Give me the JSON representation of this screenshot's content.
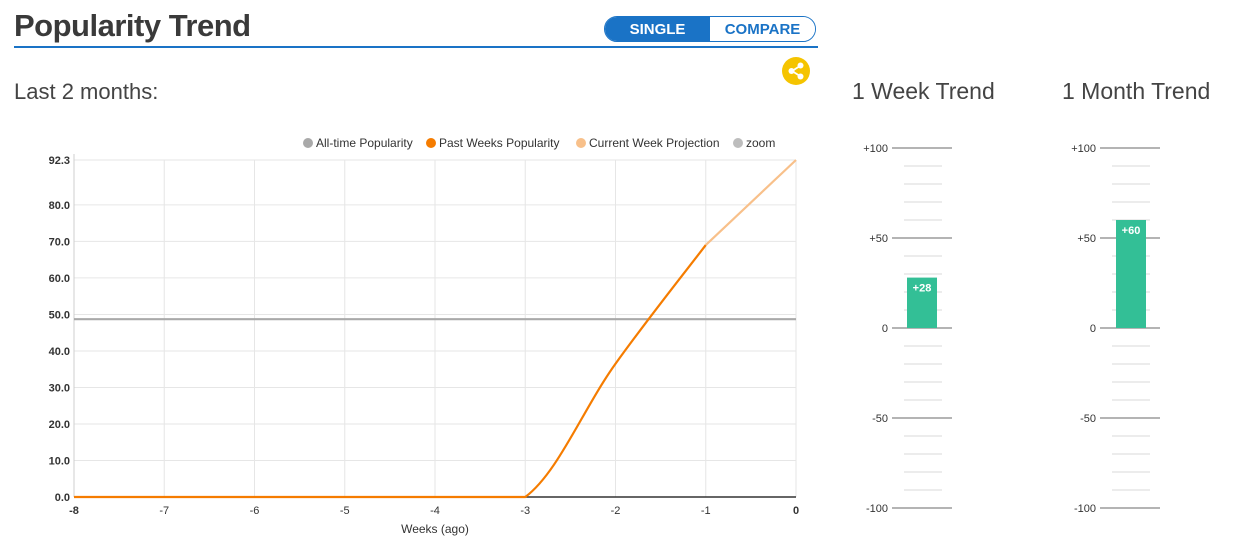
{
  "header": {
    "title": "Popularity Trend",
    "toggle": {
      "single_label": "SINGLE",
      "compare_label": "COMPARE",
      "selected": "SINGLE"
    },
    "subtitle": "Last 2 months:"
  },
  "icons": {
    "share": "share-icon"
  },
  "colors": {
    "accent": "#1a73c6",
    "alltime": "#a9a9a9",
    "past": "#f57c00",
    "projection": "#f8c08a",
    "bar": "#33bf96",
    "share": "#f5c400"
  },
  "legend": [
    {
      "label": "All-time Popularity",
      "color": "#a9a9a9"
    },
    {
      "label": "Past Weeks Popularity",
      "color": "#f57c00"
    },
    {
      "label": "Current Week Projection",
      "color": "#f8c08a"
    },
    {
      "label": "zoom",
      "color": "#bdbdbd"
    }
  ],
  "chart_data": [
    {
      "type": "line",
      "xlabel": "Weeks (ago)",
      "ylabel": "",
      "xlim": [
        -8,
        0
      ],
      "ylim": [
        0,
        92.3
      ],
      "x_ticks": [
        -8,
        -7,
        -6,
        -5,
        -4,
        -3,
        -2,
        -1,
        0
      ],
      "y_ticks": [
        "0.0",
        "10.0",
        "20.0",
        "30.0",
        "40.0",
        "50.0",
        "60.0",
        "70.0",
        "80.0",
        "92.3"
      ],
      "grid": true,
      "legend_position": "top-right",
      "series": [
        {
          "name": "All-time Popularity",
          "x": [
            -8,
            0
          ],
          "values": [
            48.7,
            48.7
          ]
        },
        {
          "name": "Past Weeks Popularity",
          "x": [
            -8,
            -7,
            -6,
            -5,
            -4,
            -3,
            -2,
            -1
          ],
          "values": [
            0,
            0,
            0,
            0,
            0,
            0,
            36.5,
            69
          ]
        },
        {
          "name": "Current Week Projection",
          "x": [
            -1,
            0
          ],
          "values": [
            69,
            92.3
          ]
        }
      ]
    },
    {
      "type": "bar",
      "title": "1 Week Trend",
      "ylim": [
        -100,
        100
      ],
      "y_ticks": [
        "+100",
        "+50",
        "0",
        "-50",
        "-100"
      ],
      "values": [
        28
      ],
      "value_label": "+28"
    },
    {
      "type": "bar",
      "title": "1 Month Trend",
      "ylim": [
        -100,
        100
      ],
      "y_ticks": [
        "+100",
        "+50",
        "0",
        "-50",
        "-100"
      ],
      "values": [
        60
      ],
      "value_label": "+60"
    }
  ]
}
